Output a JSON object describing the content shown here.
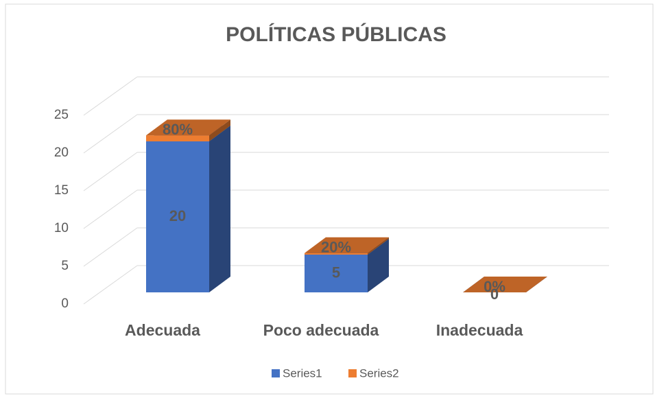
{
  "chart_data": {
    "type": "bar3d_stacked",
    "title": "POLÍTICAS PÚBLICAS",
    "categories": [
      "Adecuada",
      "Poco adecuada",
      "Inadecuada"
    ],
    "series": [
      {
        "name": "Series1",
        "color": "#4472c4",
        "values": [
          20,
          5,
          0
        ]
      },
      {
        "name": "Series2",
        "color": "#ed7d31",
        "values": [
          0.8,
          0.2,
          0
        ],
        "value_labels": [
          "80%",
          "20%",
          "0%"
        ]
      }
    ],
    "ylim": [
      0,
      25
    ],
    "yticks": [
      0,
      5,
      10,
      15,
      20,
      25
    ],
    "grid": true,
    "legend": "bottom"
  }
}
